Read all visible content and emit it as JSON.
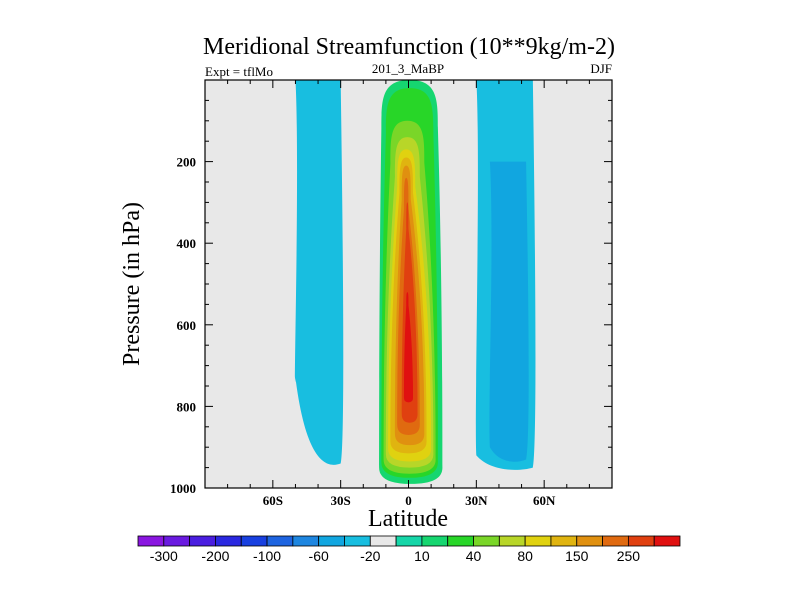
{
  "chart_data": {
    "type": "contour",
    "title": "Meridional Streamfunction (10**9kg/m-2)",
    "left_label": "Expt = tflMo",
    "center_label": "201_3_MaBP",
    "right_label": "DJF",
    "xlabel": "Latitude",
    "ylabel": "Pressure (in hPa)",
    "xlim": [
      -90,
      90
    ],
    "ylim": [
      1000,
      0
    ],
    "x_ticks": [
      {
        "value": -60,
        "label": "60S"
      },
      {
        "value": -30,
        "label": "30S"
      },
      {
        "value": 0,
        "label": "0"
      },
      {
        "value": 30,
        "label": "30N"
      },
      {
        "value": 60,
        "label": "60N"
      }
    ],
    "y_ticks": [
      {
        "value": 200,
        "label": "200"
      },
      {
        "value": 400,
        "label": "400"
      },
      {
        "value": 600,
        "label": "600"
      },
      {
        "value": 800,
        "label": "800"
      },
      {
        "value": 1000,
        "label": "1000"
      }
    ],
    "background_color": "#e8e8e8",
    "colorbar": {
      "colors": [
        "#8a16e0",
        "#6a1ae0",
        "#4a1ee0",
        "#2a28e0",
        "#1840e0",
        "#1e64e0",
        "#1e86e0",
        "#11a6e0",
        "#18bee0",
        "#e8e8e8",
        "#16d6a8",
        "#16d670",
        "#28d628",
        "#7ad628",
        "#b8d628",
        "#e0d210",
        "#e0b410",
        "#e09010",
        "#e06a10",
        "#e04010",
        "#e01010"
      ],
      "labels": [
        {
          "after_box": 1,
          "label": "-300"
        },
        {
          "after_box": 3,
          "label": "-200"
        },
        {
          "after_box": 5,
          "label": "-100"
        },
        {
          "after_box": 7,
          "label": "-60"
        },
        {
          "after_box": 9,
          "label": "-20"
        },
        {
          "after_box": 11,
          "label": "10"
        },
        {
          "after_box": 13,
          "label": "40"
        },
        {
          "after_box": 15,
          "label": "80"
        },
        {
          "after_box": 17,
          "label": "150"
        },
        {
          "after_box": 19,
          "label": "250"
        }
      ]
    },
    "contour_fields": [
      {
        "name": "positive-cell",
        "center_lat": 0,
        "center_p": 650,
        "peak_level": 20,
        "max_value": "250+",
        "levels": [
          {
            "level": 10,
            "color": "#e8e8e8"
          },
          {
            "level": 11,
            "color": "#16d670",
            "top_lat": [
              -12,
              13
            ],
            "bottom_lat": [
              -13,
              15
            ],
            "top_p": 0,
            "bottom_p": 990
          },
          {
            "level": 12,
            "color": "#28d628",
            "top_lat": [
              -10,
              11
            ],
            "bottom_lat": [
              -12,
              13
            ],
            "top_p": 20,
            "bottom_p": 975
          },
          {
            "level": 13,
            "color": "#7ad628",
            "top_lat": [
              -8,
              7
            ],
            "bottom_lat": [
              -11,
              12
            ],
            "top_p": 100,
            "bottom_p": 965
          },
          {
            "level": 14,
            "color": "#b8d628",
            "top_lat": [
              -6,
              5
            ],
            "bottom_lat": [
              -10,
              11
            ],
            "top_p": 140,
            "bottom_p": 950
          },
          {
            "level": 15,
            "color": "#e0d210",
            "top_lat": [
              -5,
              3
            ],
            "bottom_lat": [
              -9,
              10
            ],
            "top_p": 170,
            "bottom_p": 935
          },
          {
            "level": 16,
            "color": "#e0b410",
            "top_lat": [
              -4,
              2
            ],
            "bottom_lat": [
              -8,
              8
            ],
            "top_p": 190,
            "bottom_p": 915
          },
          {
            "level": 17,
            "color": "#e09010",
            "top_lat": [
              -3,
              1
            ],
            "bottom_lat": [
              -6,
              7
            ],
            "top_p": 210,
            "bottom_p": 895
          },
          {
            "level": 18,
            "color": "#e06a10",
            "top_lat": [
              -2,
              0
            ],
            "bottom_lat": [
              -5,
              5
            ],
            "top_p": 240,
            "bottom_p": 870
          },
          {
            "level": 19,
            "color": "#e04010",
            "top_lat": [
              -1,
              0
            ],
            "bottom_lat": [
              -3,
              4
            ],
            "top_p": 300,
            "bottom_p": 840
          },
          {
            "level": 20,
            "color": "#e01010",
            "top_lat": [
              -1,
              0
            ],
            "bottom_lat": [
              -2,
              2
            ],
            "top_p": 520,
            "bottom_p": 790
          }
        ]
      },
      {
        "name": "negative-cell-north",
        "center_lat": 45,
        "center_p": 650,
        "min_level": 7,
        "levels": [
          {
            "level": 8,
            "color": "#18bee0",
            "lat_range": [
              30,
              55
            ],
            "p_range": [
              0,
              960
            ]
          },
          {
            "level": 7,
            "color": "#11a6e0",
            "lat_range": [
              36,
              52
            ],
            "p_range": [
              200,
              940
            ]
          }
        ]
      },
      {
        "name": "negative-cell-south",
        "center_lat": -38,
        "level": 8,
        "color": "#18bee0",
        "lat_range": [
          -50,
          -30
        ],
        "p_range": [
          0,
          950
        ]
      }
    ]
  }
}
